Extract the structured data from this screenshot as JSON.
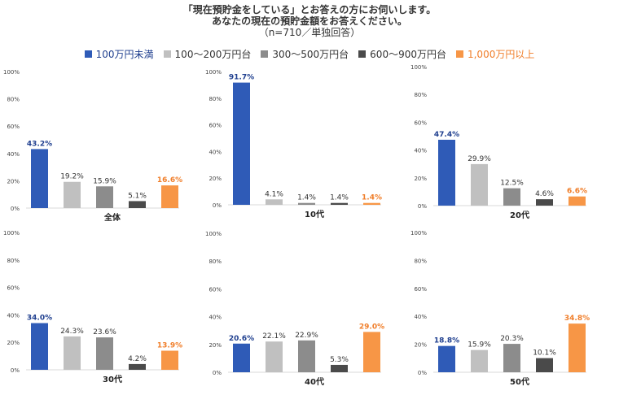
{
  "header": {
    "title_line1": "「現在預貯金をしている」とお答えの方にお伺いします。",
    "title_line2": "あなたの現在の預貯金額をお答えください。",
    "title_line3": "（n=710／単独回答）"
  },
  "colors": {
    "series": [
      "#2f5bb7",
      "#c0c0c0",
      "#8c8c8c",
      "#4a4a4a",
      "#f79646"
    ],
    "label_colors": [
      "#1f3f8f",
      "#333333",
      "#333333",
      "#333333",
      "#f07e2a"
    ]
  },
  "legend": [
    {
      "label": "100万円未満"
    },
    {
      "label": "100～200万円台"
    },
    {
      "label": "300～500万円台"
    },
    {
      "label": "600～900万円台"
    },
    {
      "label": "1,000万円以上"
    }
  ],
  "chart_data": [
    {
      "type": "bar",
      "title": "全体",
      "categories": [
        "100万円未満",
        "100～200万円台",
        "300～500万円台",
        "600～900万円台",
        "1,000万円以上"
      ],
      "values": [
        43.2,
        19.2,
        15.9,
        5.1,
        16.6
      ],
      "value_labels": [
        "43.2%",
        "19.2%",
        "15.9%",
        "5.1%",
        "16.6%"
      ],
      "yticks": [
        "0%",
        "20%",
        "40%",
        "60%",
        "80%",
        "100%"
      ],
      "ylim": [
        0,
        100
      ]
    },
    {
      "type": "bar",
      "title": "10代",
      "categories": [
        "100万円未満",
        "100～200万円台",
        "300～500万円台",
        "600～900万円台",
        "1,000万円以上"
      ],
      "values": [
        91.7,
        4.1,
        1.4,
        1.4,
        1.4
      ],
      "value_labels": [
        "91.7%",
        "4.1%",
        "1.4%",
        "1.4%",
        "1.4%"
      ],
      "yticks": [
        "0%",
        "20%",
        "40%",
        "60%",
        "80%",
        "100%"
      ],
      "ylim": [
        0,
        100
      ]
    },
    {
      "type": "bar",
      "title": "20代",
      "categories": [
        "100万円未満",
        "100～200万円台",
        "300～500万円台",
        "600～900万円台",
        "1,000万円以上"
      ],
      "values": [
        47.4,
        29.9,
        12.5,
        4.6,
        6.6
      ],
      "value_labels": [
        "47.4%",
        "29.9%",
        "12.5%",
        "4.6%",
        "6.6%"
      ],
      "yticks": [
        "0%",
        "20%",
        "40%",
        "60%",
        "80%",
        "100%"
      ],
      "ylim": [
        0,
        100
      ]
    },
    {
      "type": "bar",
      "title": "30代",
      "categories": [
        "100万円未満",
        "100～200万円台",
        "300～500万円台",
        "600～900万円台",
        "1,000万円以上"
      ],
      "values": [
        34.0,
        24.3,
        23.6,
        4.2,
        13.9
      ],
      "value_labels": [
        "34.0%",
        "24.3%",
        "23.6%",
        "4.2%",
        "13.9%"
      ],
      "yticks": [
        "0%",
        "20%",
        "40%",
        "60%",
        "80%",
        "100%"
      ],
      "ylim": [
        0,
        100
      ]
    },
    {
      "type": "bar",
      "title": "40代",
      "categories": [
        "100万円未満",
        "100～200万円台",
        "300～500万円台",
        "600～900万円台",
        "1,000万円以上"
      ],
      "values": [
        20.6,
        22.1,
        22.9,
        5.3,
        29.0
      ],
      "value_labels": [
        "20.6%",
        "22.1%",
        "22.9%",
        "5.3%",
        "29.0%"
      ],
      "yticks": [
        "0%",
        "20%",
        "40%",
        "60%",
        "80%",
        "100%"
      ],
      "ylim": [
        0,
        100
      ]
    },
    {
      "type": "bar",
      "title": "50代",
      "categories": [
        "100万円未満",
        "100～200万円台",
        "300～500万円台",
        "600～900万円台",
        "1,000万円以上"
      ],
      "values": [
        18.8,
        15.9,
        20.3,
        10.1,
        34.8
      ],
      "value_labels": [
        "18.8%",
        "15.9%",
        "20.3%",
        "10.1%",
        "34.8%"
      ],
      "yticks": [
        "0%",
        "20%",
        "40%",
        "60%",
        "80%",
        "100%"
      ],
      "ylim": [
        0,
        100
      ]
    }
  ]
}
